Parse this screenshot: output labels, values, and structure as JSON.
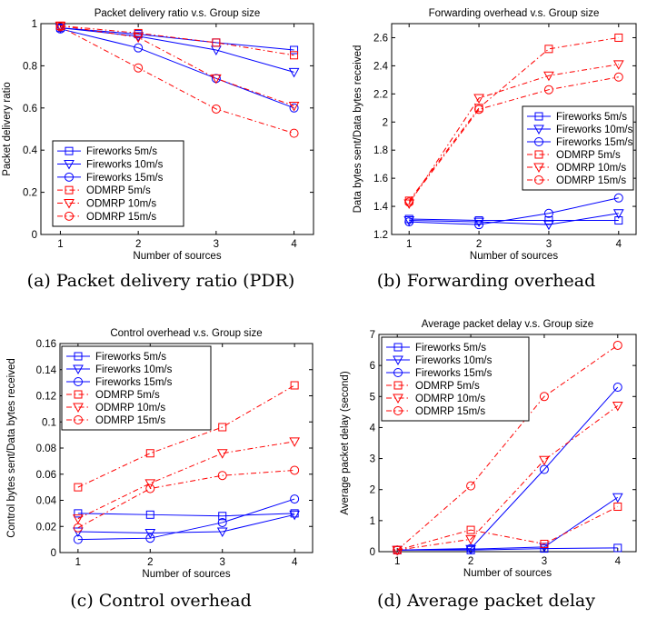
{
  "captions": [
    "(a) Packet delivery ratio (PDR)",
    "(b) Forwarding overhead",
    "(c) Control overhead",
    "(d) Average packet delay"
  ],
  "colors": {
    "fireworks": "#0000ff",
    "odmrp": "#ff0000",
    "axis": "#000000"
  },
  "chart_data": [
    {
      "type": "line",
      "title": "Packet delivery ratio v.s. Group size",
      "xlabel": "Number of sources",
      "ylabel": "Packet delivery ratio",
      "x": [
        1,
        2,
        3,
        4
      ],
      "xlim": [
        0.75,
        4.25
      ],
      "ylim": [
        0,
        1
      ],
      "xticks": [
        "1",
        "2",
        "3",
        "4"
      ],
      "yticks": [
        "0",
        "0.2",
        "0.4",
        "0.6",
        "0.8",
        "1"
      ],
      "legend_position": "bottom-left",
      "series": [
        {
          "name": "Fireworks 5m/s",
          "values": [
            0.98,
            0.95,
            0.91,
            0.875
          ]
        },
        {
          "name": "Fireworks 10m/s",
          "values": [
            0.98,
            0.94,
            0.875,
            0.77
          ]
        },
        {
          "name": "Fireworks 15m/s",
          "values": [
            0.975,
            0.885,
            0.74,
            0.6
          ]
        },
        {
          "name": "ODMRP 5m/s",
          "values": [
            0.99,
            0.955,
            0.91,
            0.85
          ]
        },
        {
          "name": "ODMRP 10m/s",
          "values": [
            0.99,
            0.935,
            0.74,
            0.61
          ]
        },
        {
          "name": "ODMRP 15m/s",
          "values": [
            0.985,
            0.79,
            0.595,
            0.48
          ]
        }
      ]
    },
    {
      "type": "line",
      "title": "Forwarding overhead v.s. Group size",
      "xlabel": "Number of sources",
      "ylabel": "Data bytes sent/Data bytes received",
      "x": [
        1,
        2,
        3,
        4
      ],
      "xlim": [
        0.75,
        4.25
      ],
      "ylim": [
        1.2,
        2.7
      ],
      "xticks": [
        "1",
        "2",
        "3",
        "4"
      ],
      "yticks": [
        "1.2",
        "1.4",
        "1.6",
        "1.8",
        "2",
        "2.2",
        "2.4",
        "2.6"
      ],
      "legend_position": "center-right",
      "series": [
        {
          "name": "Fireworks 5m/s",
          "values": [
            1.31,
            1.3,
            1.3,
            1.3
          ]
        },
        {
          "name": "Fireworks 10m/s",
          "values": [
            1.3,
            1.29,
            1.27,
            1.35
          ]
        },
        {
          "name": "Fireworks 15m/s",
          "values": [
            1.29,
            1.27,
            1.35,
            1.46
          ]
        },
        {
          "name": "ODMRP 5m/s",
          "values": [
            1.44,
            2.1,
            2.52,
            2.6
          ]
        },
        {
          "name": "ODMRP 10m/s",
          "values": [
            1.42,
            2.17,
            2.33,
            2.41
          ]
        },
        {
          "name": "ODMRP 15m/s",
          "values": [
            1.43,
            2.09,
            2.23,
            2.32
          ]
        }
      ]
    },
    {
      "type": "line",
      "title": "Control overhead v.s. Group size",
      "xlabel": "Number of sources",
      "ylabel": "Control bytes sent/Data bytes received",
      "x": [
        1,
        2,
        3,
        4
      ],
      "xlim": [
        0.75,
        4.25
      ],
      "ylim": [
        0,
        0.16
      ],
      "xticks": [
        "1",
        "2",
        "3",
        "4"
      ],
      "yticks": [
        "0",
        "0.02",
        "0.04",
        "0.06",
        "0.08",
        "0.1",
        "0.12",
        "0.14",
        "0.16"
      ],
      "legend_position": "top-left",
      "series": [
        {
          "name": "Fireworks 5m/s",
          "values": [
            0.03,
            0.029,
            0.028,
            0.03
          ]
        },
        {
          "name": "Fireworks 10m/s",
          "values": [
            0.016,
            0.015,
            0.016,
            0.029
          ]
        },
        {
          "name": "Fireworks 15m/s",
          "values": [
            0.01,
            0.011,
            0.023,
            0.041
          ]
        },
        {
          "name": "ODMRP 5m/s",
          "values": [
            0.05,
            0.076,
            0.096,
            0.128
          ]
        },
        {
          "name": "ODMRP 10m/s",
          "values": [
            0.026,
            0.053,
            0.076,
            0.085
          ]
        },
        {
          "name": "ODMRP 15m/s",
          "values": [
            0.019,
            0.049,
            0.059,
            0.063
          ]
        }
      ]
    },
    {
      "type": "line",
      "title": "Average packet delay v.s. Group size",
      "xlabel": "Number of sources",
      "ylabel": "Average packet delay (second)",
      "x": [
        1,
        2,
        3,
        4
      ],
      "xlim": [
        0.75,
        4.25
      ],
      "ylim": [
        0,
        7
      ],
      "xticks": [
        "1",
        "2",
        "3",
        "4"
      ],
      "yticks": [
        "0",
        "1",
        "2",
        "3",
        "4",
        "5",
        "6",
        "7"
      ],
      "legend_position": "top-left",
      "series": [
        {
          "name": "Fireworks 5m/s",
          "values": [
            0.05,
            0.05,
            0.1,
            0.12
          ]
        },
        {
          "name": "Fireworks 10m/s",
          "values": [
            0.05,
            0.08,
            0.15,
            1.75
          ]
        },
        {
          "name": "Fireworks 15m/s",
          "values": [
            0.05,
            0.1,
            2.65,
            5.3
          ]
        },
        {
          "name": "ODMRP 5m/s",
          "values": [
            0.05,
            0.7,
            0.25,
            1.45
          ]
        },
        {
          "name": "ODMRP 10m/s",
          "values": [
            0.05,
            0.4,
            2.95,
            4.7
          ]
        },
        {
          "name": "ODMRP 15m/s",
          "values": [
            0.05,
            2.12,
            5.0,
            6.65
          ]
        }
      ]
    }
  ]
}
